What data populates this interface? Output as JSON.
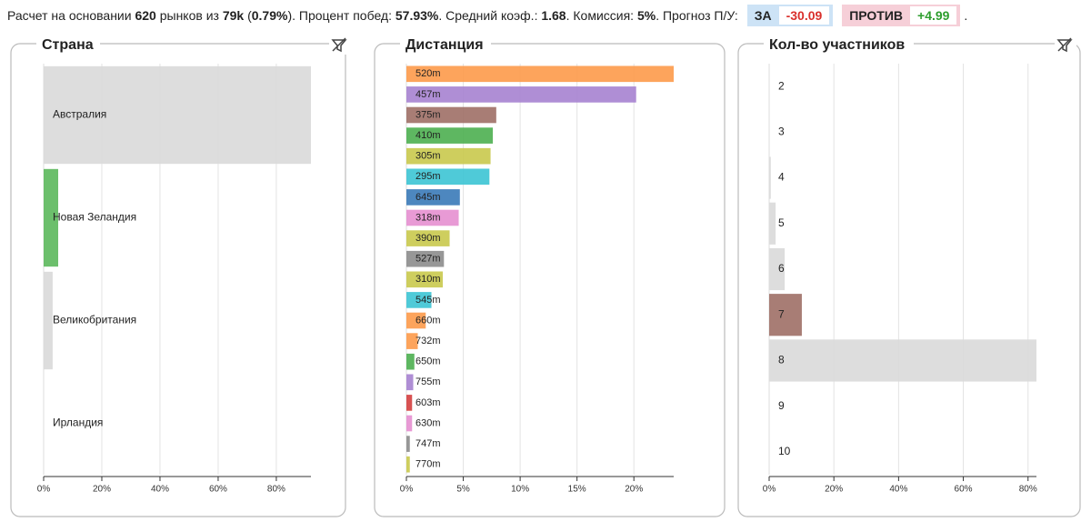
{
  "header": {
    "segments": [
      {
        "text": "Расчет на основании ",
        "bold": false
      },
      {
        "text": "620",
        "bold": true
      },
      {
        "text": " рынков из ",
        "bold": false
      },
      {
        "text": "79k",
        "bold": true
      },
      {
        "text": " (",
        "bold": false
      },
      {
        "text": "0.79%",
        "bold": true
      },
      {
        "text": "). Процент побед: ",
        "bold": false
      },
      {
        "text": "57.93%",
        "bold": true
      },
      {
        "text": ". Средний коэф.: ",
        "bold": false
      },
      {
        "text": "1.68",
        "bold": true
      },
      {
        "text": ". Комиссия: ",
        "bold": false
      },
      {
        "text": "5%",
        "bold": true
      },
      {
        "text": ". Прогноз П/У:",
        "bold": false
      }
    ],
    "for_label": "ЗА",
    "for_value": "-30.09",
    "against_label": "ПРОТИВ",
    "against_value": "+4.99",
    "end": "."
  },
  "chart_data": [
    {
      "type": "bar",
      "orientation": "horizontal",
      "title": "Страна",
      "categories": [
        "Австралия",
        "Новая Зеландия",
        "Великобритания",
        "Ирландия"
      ],
      "values": [
        91.9,
        5,
        3.1,
        0
      ],
      "colors": [
        "#d9d9d9",
        "#5cb85c",
        "#d9d9d9",
        "#d9d9d9"
      ],
      "xlim": [
        0,
        91.9
      ],
      "xticks": [
        {
          "value": 0,
          "label": "0%"
        },
        {
          "value": 20,
          "label": "20%"
        },
        {
          "value": 40,
          "label": "40%"
        },
        {
          "value": 60,
          "label": "60%"
        },
        {
          "value": 80,
          "label": "80%"
        }
      ],
      "grid": true
    },
    {
      "type": "bar",
      "orientation": "horizontal",
      "title": "Дистанция",
      "categories": [
        "520m",
        "457m",
        "375m",
        "410m",
        "305m",
        "295m",
        "645m",
        "318m",
        "390m",
        "527m",
        "310m",
        "545m",
        "660m",
        "732m",
        "650m",
        "755m",
        "603m",
        "630m",
        "747m",
        "770m"
      ],
      "values": [
        23.5,
        20.2,
        7.9,
        7.6,
        7.4,
        7.3,
        4.7,
        4.6,
        3.8,
        3.3,
        3.2,
        2.2,
        1.7,
        1.0,
        0.7,
        0.6,
        0.5,
        0.5,
        0.3,
        0.3
      ],
      "colors": [
        "#fd9a4a",
        "#a682d0",
        "#9e6f66",
        "#4caf50",
        "#c9c94d",
        "#3cc4d4",
        "#3a7ab8",
        "#e68fd0",
        "#c9c94d",
        "#8c8c8c",
        "#c9c94d",
        "#3cc4d4",
        "#fd9a4a",
        "#fd9a4a",
        "#4caf50",
        "#a682d0",
        "#d43f3f",
        "#e68fd0",
        "#8c8c8c",
        "#c9c94d"
      ],
      "xlim": [
        0,
        23.5
      ],
      "xticks": [
        {
          "value": 0,
          "label": "0%"
        },
        {
          "value": 5,
          "label": "5%"
        },
        {
          "value": 10,
          "label": "10%"
        },
        {
          "value": 15,
          "label": "15%"
        },
        {
          "value": 20,
          "label": "20%"
        }
      ],
      "grid": true
    },
    {
      "type": "bar",
      "orientation": "horizontal",
      "title": "Кол-во участников",
      "categories": [
        "2",
        "3",
        "4",
        "5",
        "6",
        "7",
        "8",
        "9",
        "10"
      ],
      "values": [
        0,
        0,
        0.5,
        2,
        4.8,
        10.1,
        82.6,
        0,
        0
      ],
      "colors": [
        "#d9d9d9",
        "#d9d9d9",
        "#d9d9d9",
        "#d9d9d9",
        "#d9d9d9",
        "#9e6f66",
        "#d9d9d9",
        "#d9d9d9",
        "#d9d9d9"
      ],
      "xlim": [
        0,
        82.6
      ],
      "xticks": [
        {
          "value": 0,
          "label": "0%"
        },
        {
          "value": 20,
          "label": "20%"
        },
        {
          "value": 40,
          "label": "40%"
        },
        {
          "value": 60,
          "label": "60%"
        },
        {
          "value": 80,
          "label": "80%"
        }
      ],
      "grid": true
    }
  ]
}
